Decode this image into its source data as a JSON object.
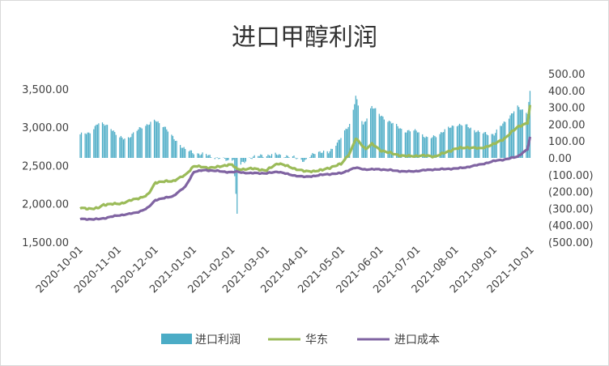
{
  "chart_data": {
    "type": "bar+line",
    "title": "进口甲醇利润",
    "x_tick_labels": [
      "2020-10-01",
      "2020-11-01",
      "2020-12-01",
      "2021-01-01",
      "2021-02-01",
      "2021-03-01",
      "2021-04-01",
      "2021-05-01",
      "2021-06-01",
      "2021-07-01",
      "2021-08-01",
      "2021-09-01",
      "2021-10-01"
    ],
    "y_left": {
      "range": [
        1500,
        3700
      ],
      "ticks": [
        "1,500.00",
        "2,000.00",
        "2,500.00",
        "3,000.00",
        "3,500.00"
      ]
    },
    "y_right": {
      "range": [
        -500,
        500
      ],
      "ticks": [
        "(500.00)",
        "(400.00)",
        "(300.00)",
        "(200.00)",
        "(100.00)",
        "0.00",
        "100.00",
        "200.00",
        "300.00",
        "400.00",
        "500.00"
      ]
    },
    "legend": {
      "position": "bottom",
      "entries": [
        "进口利润",
        "华东",
        "进口成本"
      ]
    },
    "colors": {
      "profit": "#4bacc6",
      "east_china": "#9bbb59",
      "import_cost": "#8064a2"
    },
    "series": [
      {
        "name": "进口利润",
        "axis": "right",
        "kind": "bar",
        "keypoints": [
          [
            "2020-10-01",
            140
          ],
          [
            "2020-10-08",
            145
          ],
          [
            "2020-10-15",
            205
          ],
          [
            "2020-10-25",
            190
          ],
          [
            "2020-11-01",
            120
          ],
          [
            "2020-11-08",
            115
          ],
          [
            "2020-11-20",
            185
          ],
          [
            "2020-12-01",
            220
          ],
          [
            "2020-12-08",
            190
          ],
          [
            "2020-12-15",
            120
          ],
          [
            "2020-12-25",
            50
          ],
          [
            "2021-01-01",
            30
          ],
          [
            "2021-01-10",
            20
          ],
          [
            "2021-01-20",
            0
          ],
          [
            "2021-01-31",
            -20
          ],
          [
            "2021-02-02",
            0
          ],
          [
            "2021-02-05",
            -330
          ],
          [
            "2021-02-08",
            -40
          ],
          [
            "2021-02-15",
            0
          ],
          [
            "2021-02-25",
            15
          ],
          [
            "2021-03-10",
            20
          ],
          [
            "2021-03-25",
            0
          ],
          [
            "2021-04-01",
            -20
          ],
          [
            "2021-04-10",
            40
          ],
          [
            "2021-04-20",
            30
          ],
          [
            "2021-04-30",
            120
          ],
          [
            "2021-05-08",
            210
          ],
          [
            "2021-05-12",
            370
          ],
          [
            "2021-05-18",
            190
          ],
          [
            "2021-05-25",
            310
          ],
          [
            "2021-06-01",
            250
          ],
          [
            "2021-06-10",
            210
          ],
          [
            "2021-06-20",
            160
          ],
          [
            "2021-07-01",
            160
          ],
          [
            "2021-07-10",
            110
          ],
          [
            "2021-07-20",
            150
          ],
          [
            "2021-08-01",
            200
          ],
          [
            "2021-08-10",
            190
          ],
          [
            "2021-08-20",
            150
          ],
          [
            "2021-09-01",
            140
          ],
          [
            "2021-09-10",
            220
          ],
          [
            "2021-09-20",
            300
          ],
          [
            "2021-09-28",
            270
          ],
          [
            "2021-09-30",
            390
          ]
        ]
      },
      {
        "name": "华东",
        "axis": "left",
        "kind": "line",
        "keypoints": [
          [
            "2020-10-01",
            1940
          ],
          [
            "2020-10-15",
            1940
          ],
          [
            "2020-10-20",
            1990
          ],
          [
            "2020-11-01",
            2000
          ],
          [
            "2020-11-15",
            2060
          ],
          [
            "2020-11-25",
            2120
          ],
          [
            "2020-12-01",
            2280
          ],
          [
            "2020-12-15",
            2300
          ],
          [
            "2020-12-25",
            2370
          ],
          [
            "2021-01-01",
            2500
          ],
          [
            "2021-01-10",
            2470
          ],
          [
            "2021-01-20",
            2480
          ],
          [
            "2021-01-31",
            2520
          ],
          [
            "2021-02-05",
            2450
          ],
          [
            "2021-02-15",
            2460
          ],
          [
            "2021-03-01",
            2440
          ],
          [
            "2021-03-10",
            2530
          ],
          [
            "2021-03-20",
            2480
          ],
          [
            "2021-04-01",
            2420
          ],
          [
            "2021-04-15",
            2440
          ],
          [
            "2021-04-30",
            2520
          ],
          [
            "2021-05-08",
            2680
          ],
          [
            "2021-05-12",
            2850
          ],
          [
            "2021-05-20",
            2720
          ],
          [
            "2021-05-25",
            2780
          ],
          [
            "2021-06-01",
            2700
          ],
          [
            "2021-06-10",
            2660
          ],
          [
            "2021-06-20",
            2620
          ],
          [
            "2021-07-01",
            2630
          ],
          [
            "2021-07-15",
            2620
          ],
          [
            "2021-08-01",
            2720
          ],
          [
            "2021-08-10",
            2740
          ],
          [
            "2021-08-20",
            2720
          ],
          [
            "2021-09-01",
            2780
          ],
          [
            "2021-09-10",
            2860
          ],
          [
            "2021-09-20",
            3010
          ],
          [
            "2021-09-28",
            3050
          ],
          [
            "2021-09-30",
            3280
          ]
        ]
      },
      {
        "name": "进口成本",
        "axis": "left",
        "kind": "line",
        "keypoints": [
          [
            "2020-10-01",
            1800
          ],
          [
            "2020-10-15",
            1800
          ],
          [
            "2020-10-20",
            1810
          ],
          [
            "2020-11-01",
            1850
          ],
          [
            "2020-11-15",
            1880
          ],
          [
            "2020-11-25",
            1950
          ],
          [
            "2020-12-01",
            2050
          ],
          [
            "2020-12-15",
            2100
          ],
          [
            "2020-12-25",
            2220
          ],
          [
            "2021-01-01",
            2420
          ],
          [
            "2021-01-10",
            2440
          ],
          [
            "2021-01-20",
            2430
          ],
          [
            "2021-01-31",
            2410
          ],
          [
            "2021-02-05",
            2420
          ],
          [
            "2021-02-15",
            2400
          ],
          [
            "2021-03-01",
            2400
          ],
          [
            "2021-03-10",
            2420
          ],
          [
            "2021-03-20",
            2380
          ],
          [
            "2021-04-01",
            2350
          ],
          [
            "2021-04-15",
            2380
          ],
          [
            "2021-04-30",
            2400
          ],
          [
            "2021-05-08",
            2450
          ],
          [
            "2021-05-12",
            2470
          ],
          [
            "2021-05-20",
            2450
          ],
          [
            "2021-06-01",
            2450
          ],
          [
            "2021-06-10",
            2440
          ],
          [
            "2021-06-20",
            2420
          ],
          [
            "2021-07-01",
            2430
          ],
          [
            "2021-07-15",
            2450
          ],
          [
            "2021-08-01",
            2460
          ],
          [
            "2021-08-10",
            2480
          ],
          [
            "2021-08-20",
            2510
          ],
          [
            "2021-09-01",
            2560
          ],
          [
            "2021-09-10",
            2580
          ],
          [
            "2021-09-20",
            2620
          ],
          [
            "2021-09-28",
            2710
          ],
          [
            "2021-09-30",
            2870
          ]
        ]
      }
    ]
  }
}
